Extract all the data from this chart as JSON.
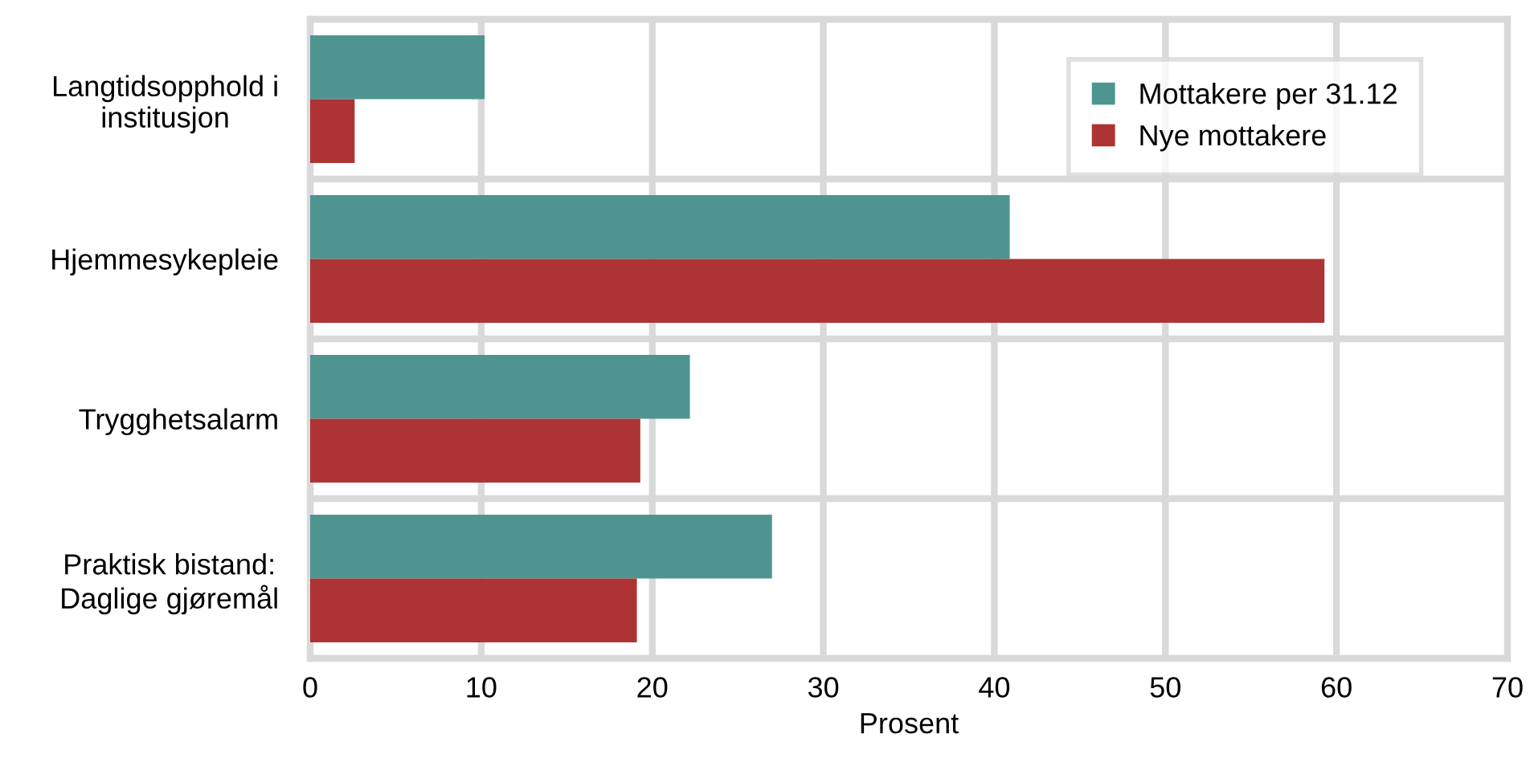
{
  "chart_data": {
    "type": "bar",
    "orientation": "horizontal",
    "xlabel": "Prosent",
    "categories": [
      "Langtidsopphold i\ninstitusjon",
      "Hjemmesykepleie",
      "Trygghetsalarm",
      "Praktisk bistand:\nDaglige gjøremål"
    ],
    "series": [
      {
        "name": "Mottakere per 31.12",
        "color": "#4e9592",
        "values": [
          10.2,
          40.9,
          22.2,
          27.0
        ]
      },
      {
        "name": "Nye mottakere",
        "color": "#ad3334",
        "values": [
          2.6,
          59.3,
          19.3,
          19.1
        ]
      }
    ],
    "xlim": [
      0,
      70
    ],
    "xticks": [
      0,
      10,
      20,
      30,
      40,
      50,
      60,
      70
    ],
    "grid": true,
    "legend": "top right"
  }
}
